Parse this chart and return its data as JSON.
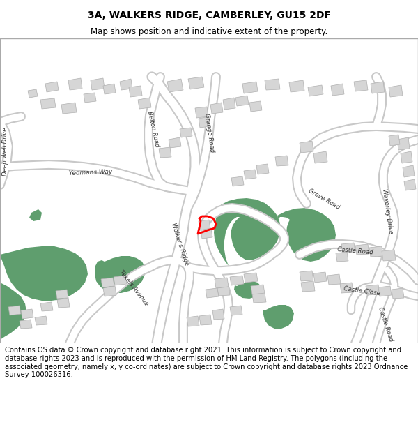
{
  "title": "3A, WALKERS RIDGE, CAMBERLEY, GU15 2DF",
  "subtitle": "Map shows position and indicative extent of the property.",
  "footer": "Contains OS data © Crown copyright and database right 2021. This information is subject to Crown copyright and database rights 2023 and is reproduced with the permission of HM Land Registry. The polygons (including the associated geometry, namely x, y co-ordinates) are subject to Crown copyright and database rights 2023 Ordnance Survey 100026316.",
  "bg_color": "#ffffff",
  "map_bg": "#ffffff",
  "road_color": "#ffffff",
  "road_outline_color": "#c8c8c8",
  "building_color": "#d6d6d6",
  "building_outline": "#b0b0b0",
  "green_color": "#5f9e6e",
  "property_color": "#ff0000",
  "title_fontsize": 10,
  "subtitle_fontsize": 8.5,
  "footer_fontsize": 7.2,
  "map_border_color": "#aaaaaa"
}
